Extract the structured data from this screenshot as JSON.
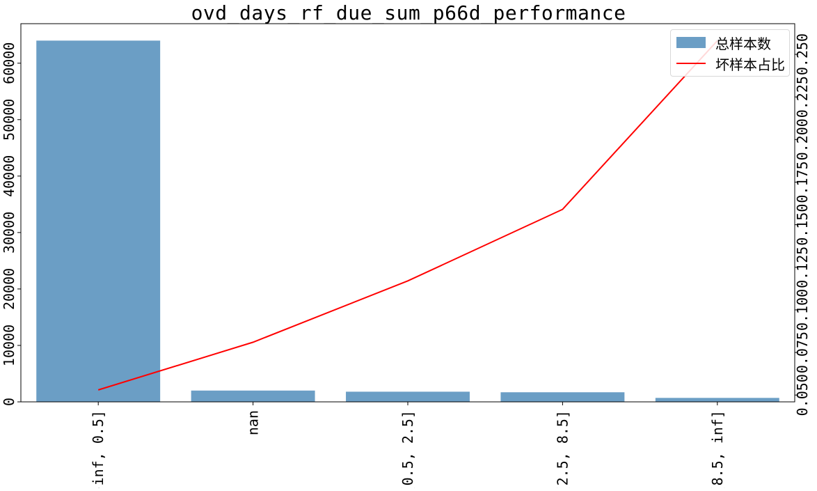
{
  "chart_data": {
    "type": "bar",
    "title": "ovd_days_rf_due_sum_p66d_performance",
    "categories": [
      "(-inf, 0.5]",
      "nan",
      "(0.5, 2.5]",
      "(2.5, 8.5]",
      "(8.5, inf]"
    ],
    "series": [
      {
        "name": "总样本数",
        "type": "bar",
        "axis": "left",
        "color": "#6b9ec5",
        "values": [
          64000,
          2000,
          1800,
          1700,
          700
        ]
      },
      {
        "name": "坏样本占比",
        "type": "line",
        "axis": "right",
        "color": "#ff0000",
        "values": [
          0.053,
          0.081,
          0.117,
          0.159,
          0.258
        ]
      }
    ],
    "y_left": {
      "ylim": [
        0,
        67000
      ],
      "ticks": [
        "0",
        "10000",
        "20000",
        "30000",
        "40000",
        "50000",
        "60000"
      ]
    },
    "y_right": {
      "ylim": [
        0.046,
        0.268
      ],
      "ticks": [
        "0.050",
        "0.075",
        "0.100",
        "0.125",
        "0.150",
        "0.175",
        "0.200",
        "0.225",
        "0.250"
      ]
    },
    "grid": false,
    "legend_position": "top-right"
  }
}
